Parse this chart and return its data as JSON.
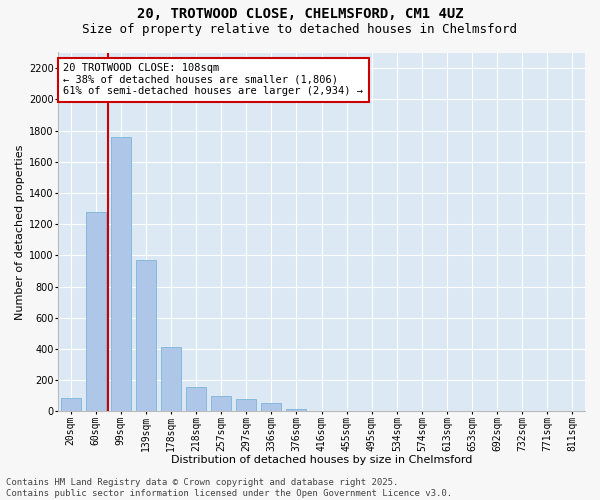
{
  "title_line1": "20, TROTWOOD CLOSE, CHELMSFORD, CM1 4UZ",
  "title_line2": "Size of property relative to detached houses in Chelmsford",
  "xlabel": "Distribution of detached houses by size in Chelmsford",
  "ylabel": "Number of detached properties",
  "categories": [
    "20sqm",
    "60sqm",
    "99sqm",
    "139sqm",
    "178sqm",
    "218sqm",
    "257sqm",
    "297sqm",
    "336sqm",
    "376sqm",
    "416sqm",
    "455sqm",
    "495sqm",
    "534sqm",
    "574sqm",
    "613sqm",
    "653sqm",
    "692sqm",
    "732sqm",
    "771sqm",
    "811sqm"
  ],
  "values": [
    85,
    1280,
    1760,
    970,
    415,
    155,
    100,
    80,
    55,
    15,
    0,
    0,
    0,
    0,
    0,
    0,
    0,
    0,
    0,
    0,
    0
  ],
  "bar_color": "#aec6e8",
  "bar_edge_color": "#6aaed6",
  "bar_width": 0.8,
  "vline_index": 2,
  "vline_color": "#cc0000",
  "annotation_text": "20 TROTWOOD CLOSE: 108sqm\n← 38% of detached houses are smaller (1,806)\n61% of semi-detached houses are larger (2,934) →",
  "annotation_box_color": "#ffffff",
  "annotation_box_edge": "#cc0000",
  "ylim": [
    0,
    2300
  ],
  "yticks": [
    0,
    200,
    400,
    600,
    800,
    1000,
    1200,
    1400,
    1600,
    1800,
    2000,
    2200
  ],
  "background_color": "#dce9f5",
  "plot_bg_color": "#dce9f5",
  "fig_bg_color": "#f7f7f7",
  "grid_color": "#ffffff",
  "footer_line1": "Contains HM Land Registry data © Crown copyright and database right 2025.",
  "footer_line2": "Contains public sector information licensed under the Open Government Licence v3.0.",
  "title_fontsize": 10,
  "subtitle_fontsize": 9,
  "axis_label_fontsize": 8,
  "tick_fontsize": 7,
  "annotation_fontsize": 7.5,
  "footer_fontsize": 6.5
}
